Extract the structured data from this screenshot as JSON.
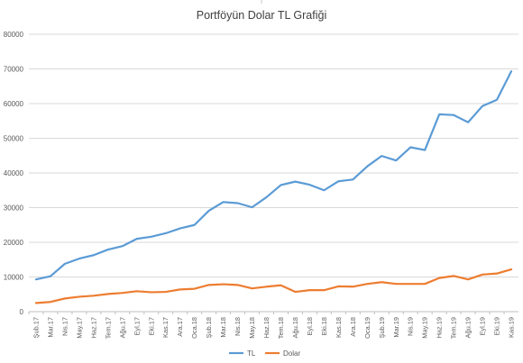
{
  "chart_data": {
    "type": "line",
    "title": "Portföyün Dolar TL Grafiği",
    "xlabel": "",
    "ylabel": "",
    "ylim": [
      0,
      80000
    ],
    "yticks": [
      "0",
      "10000",
      "20000",
      "30000",
      "40000",
      "50000",
      "60000",
      "70000",
      "80000"
    ],
    "grid": true,
    "legend_position": "bottom",
    "categories": [
      "Şub.17",
      "Mar.17",
      "Nis.17",
      "May.17",
      "Haz.17",
      "Tem.17",
      "Ağu.17",
      "Eyl.17",
      "Eki.17",
      "Kas.17",
      "Ara.17",
      "Oca.18",
      "Şub.18",
      "Mar.18",
      "Nis.18",
      "May.18",
      "Haz.18",
      "Tem.18",
      "Ağu.18",
      "Eyl.18",
      "Eki.18",
      "Kas.18",
      "Ara.18",
      "Oca.19",
      "Şub.19",
      "Mar.19",
      "Nis.19",
      "May.19",
      "Haz.19",
      "Tem.19",
      "Ağu.19",
      "Eyl.19",
      "Eki.19",
      "Kas.19"
    ],
    "series": [
      {
        "name": "TL",
        "color": "#5b9bd5",
        "values": [
          9300,
          10200,
          13800,
          15300,
          16300,
          17900,
          18900,
          21000,
          21600,
          22600,
          24000,
          25000,
          29100,
          31600,
          31300,
          30100,
          33000,
          36500,
          37500,
          36600,
          35000,
          37600,
          38100,
          41900,
          44900,
          43600,
          47400,
          46600,
          56900,
          56700,
          54600,
          59300,
          61100,
          69300
        ]
      },
      {
        "name": "Dolar",
        "color": "#ed7d31",
        "values": [
          2500,
          2800,
          3800,
          4300,
          4600,
          5100,
          5400,
          5900,
          5600,
          5700,
          6400,
          6600,
          7700,
          7900,
          7700,
          6700,
          7200,
          7600,
          5700,
          6200,
          6200,
          7300,
          7200,
          8000,
          8500,
          8000,
          8000,
          8000,
          9700,
          10300,
          9300,
          10700,
          11000,
          12200
        ]
      }
    ]
  }
}
